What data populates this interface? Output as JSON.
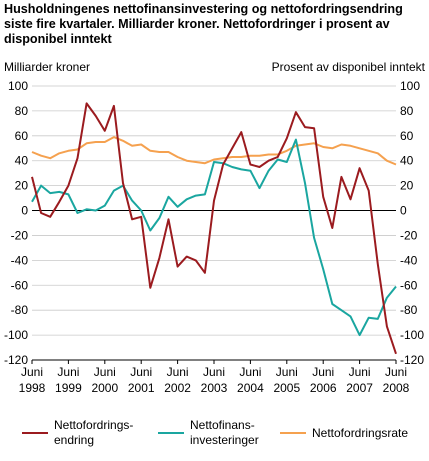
{
  "title_lines": [
    "Husholdningenes nettofinansinvestering og nettofordringsendring",
    "siste fire kvartaler. Milliarder kroner. Nettofordringer i prosent av",
    "disponibel inntekt"
  ],
  "chart_data": {
    "type": "line",
    "title": "Husholdningenes nettofinansinvestering og nettofordringsendring siste fire kvartaler. Milliarder kroner. Nettofordringer i prosent av disponibel inntekt",
    "ylabel_left": "Milliarder kroner",
    "ylabel_right": "Prosent av disponibel inntekt",
    "ylim_left": [
      -120,
      100
    ],
    "ylim_right": [
      -120,
      100
    ],
    "yticks": [
      100,
      80,
      60,
      40,
      20,
      0,
      -20,
      -40,
      -60,
      -80,
      -100,
      -120
    ],
    "x_tick_labels": [
      [
        "Juni",
        "1998"
      ],
      [
        "Juni",
        "1999"
      ],
      [
        "Juni",
        "2000"
      ],
      [
        "Juni",
        "2001"
      ],
      [
        "Juni",
        "2002"
      ],
      [
        "Juni",
        "2003"
      ],
      [
        "Juni",
        "2004"
      ],
      [
        "Juni",
        "2005"
      ],
      [
        "Juni",
        "2006"
      ],
      [
        "Juni",
        "2007"
      ],
      [
        "Juni",
        "2008"
      ]
    ],
    "grid": true,
    "legend_position": "bottom",
    "series": [
      {
        "name": "Nettofordrings-\nendring",
        "color": "#9b1b1f",
        "axis": "left",
        "values": [
          27,
          -2,
          -5,
          7,
          20,
          42,
          86,
          76,
          64,
          84,
          22,
          -7,
          -5,
          -62,
          -38,
          -7,
          -45,
          -37,
          -40,
          -50,
          8,
          37,
          50,
          63,
          37,
          35,
          40,
          43,
          58,
          79,
          67,
          66,
          11,
          -14,
          27,
          9,
          34,
          16,
          -43,
          -93,
          -115
        ]
      },
      {
        "name": "Nettofinans-\ninvesteringer",
        "color": "#1aa6a0",
        "axis": "left",
        "values": [
          7,
          20,
          14,
          15,
          13,
          -2,
          1,
          0,
          4,
          16,
          20,
          8,
          0,
          -16,
          -6,
          11,
          3,
          9,
          12,
          13,
          39,
          38,
          35,
          33,
          32,
          18,
          32,
          41,
          39,
          57,
          22,
          -22,
          -47,
          -75,
          -80,
          -85,
          -100,
          -86,
          -87,
          -70,
          -61
        ]
      },
      {
        "name": "Nettofordringsrate",
        "color": "#f5a14f",
        "axis": "right",
        "values": [
          47,
          44,
          42,
          46,
          48,
          49,
          54,
          55,
          55,
          59,
          56,
          52,
          53,
          48,
          47,
          47,
          43,
          40,
          39,
          38,
          41,
          42,
          43,
          43,
          44,
          44,
          45,
          45,
          48,
          52,
          53,
          54,
          51,
          50,
          53,
          52,
          50,
          48,
          46,
          40,
          37
        ]
      }
    ]
  }
}
